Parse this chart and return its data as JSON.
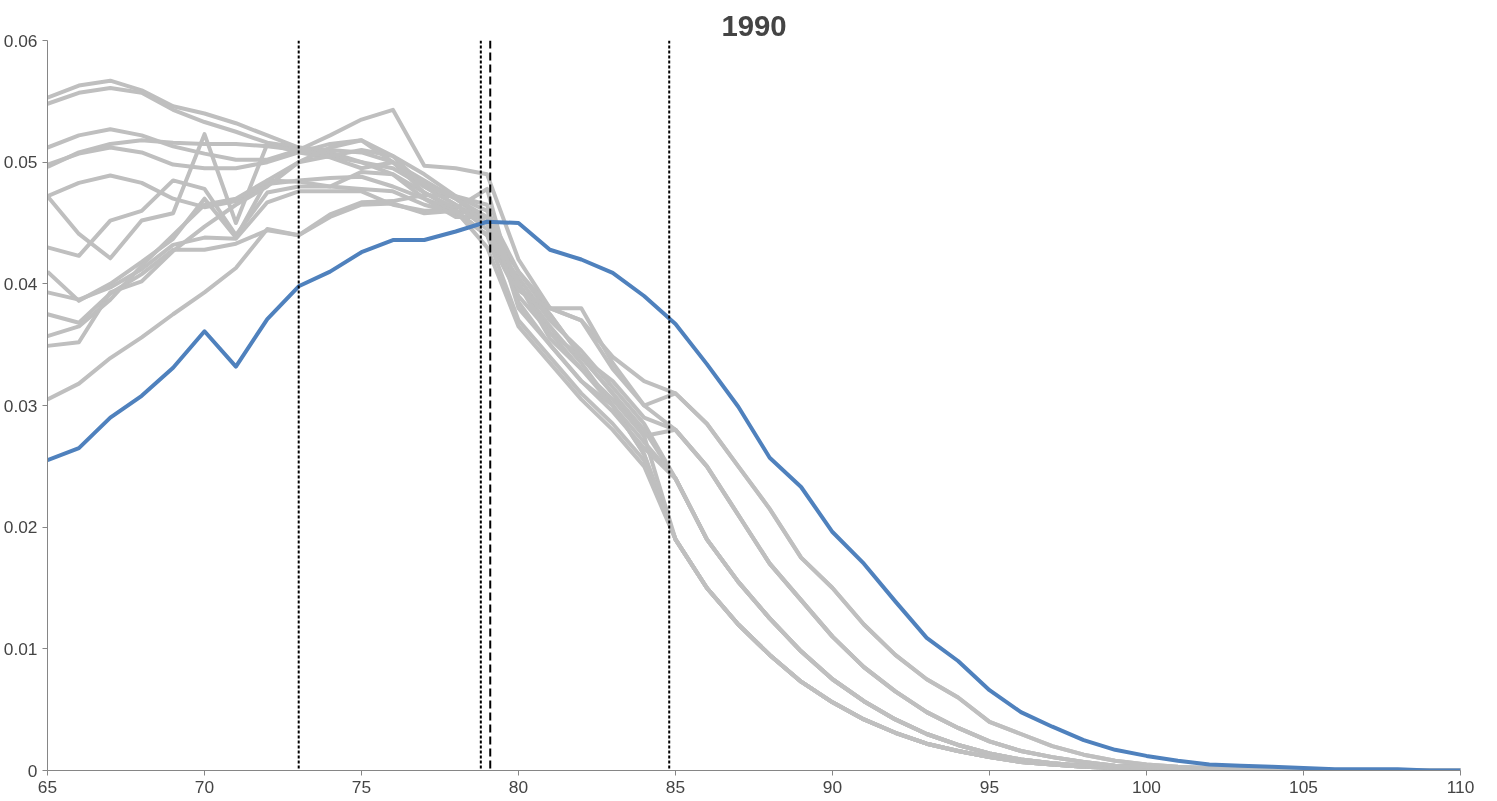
{
  "chart_data": {
    "type": "line",
    "title": "1990",
    "x": [
      65,
      66,
      67,
      68,
      69,
      70,
      71,
      72,
      73,
      74,
      75,
      76,
      77,
      78,
      79,
      80,
      81,
      82,
      83,
      84,
      85,
      86,
      87,
      88,
      89,
      90,
      91,
      92,
      93,
      94,
      95,
      96,
      97,
      98,
      99,
      100,
      101,
      102,
      103,
      104,
      105,
      106,
      107,
      108,
      109,
      110
    ],
    "xlim": [
      65,
      110
    ],
    "xticks": [
      65,
      70,
      75,
      80,
      85,
      90,
      95,
      100,
      105,
      110
    ],
    "ylim": [
      0,
      0.06
    ],
    "yticks": [
      0,
      0.01,
      0.02,
      0.03,
      0.04,
      0.05,
      0.06
    ],
    "grid": false,
    "marker": "none",
    "line_style": "solid",
    "ref_lines": [
      {
        "axis": "x",
        "value": 73,
        "color": "#000000",
        "line_style": "dotted"
      },
      {
        "axis": "x",
        "value": 78.8,
        "color": "#000000",
        "line_style": "dotted"
      },
      {
        "axis": "x",
        "value": 79.1,
        "color": "#000000",
        "line_style": "dashed"
      },
      {
        "axis": "x",
        "value": 84.8,
        "color": "#000000",
        "line_style": "dotted"
      }
    ],
    "series": [
      {
        "color": "#bfbfbf",
        "values": [
          0.0553,
          0.0563,
          0.0567,
          0.0559,
          0.0546,
          0.054,
          0.0532,
          0.0522,
          0.0512,
          0.0508,
          0.05,
          0.049,
          0.0475,
          0.046,
          0.044,
          0.0405,
          0.037,
          0.0345,
          0.0315,
          0.0285,
          0.024,
          0.019,
          0.0155,
          0.0125,
          0.0098,
          0.0075,
          0.0057,
          0.0042,
          0.003,
          0.0021,
          0.0014,
          0.0009,
          0.0006,
          0.0004,
          0.0002,
          0.0002,
          0.0001,
          0.0001,
          0,
          0,
          0,
          0,
          0,
          0,
          0,
          0
        ]
      },
      {
        "color": "#bfbfbf",
        "values": [
          0.0548,
          0.0557,
          0.0561,
          0.0557,
          0.0543,
          0.0533,
          0.0525,
          0.0516,
          0.0512,
          0.051,
          0.0508,
          0.05,
          0.0485,
          0.047,
          0.045,
          0.041,
          0.0375,
          0.034,
          0.031,
          0.0275,
          0.019,
          0.015,
          0.012,
          0.0095,
          0.0073,
          0.0056,
          0.0042,
          0.0031,
          0.0022,
          0.0016,
          0.0011,
          0.0007,
          0.0005,
          0.0003,
          0.0002,
          0.0001,
          0.0001,
          0,
          0,
          0,
          0,
          0,
          0,
          0,
          0,
          0
        ]
      },
      {
        "color": "#bfbfbf",
        "values": [
          0.0512,
          0.0522,
          0.0527,
          0.0522,
          0.0513,
          0.0507,
          0.0502,
          0.0502,
          0.051,
          0.0522,
          0.0535,
          0.0543,
          0.0497,
          0.0495,
          0.049,
          0.042,
          0.038,
          0.037,
          0.034,
          0.032,
          0.031,
          0.0285,
          0.025,
          0.0215,
          0.0175,
          0.015,
          0.012,
          0.0095,
          0.0075,
          0.006,
          0.004,
          0.003,
          0.002,
          0.0013,
          0.0008,
          0.0005,
          0.0003,
          0.0002,
          0.0001,
          0.0001,
          0,
          0,
          0,
          0,
          0,
          0
        ]
      },
      {
        "color": "#bfbfbf",
        "values": [
          0.0496,
          0.0508,
          0.0515,
          0.0518,
          0.0516,
          0.0515,
          0.0515,
          0.0513,
          0.051,
          0.0505,
          0.05,
          0.0495,
          0.048,
          0.0465,
          0.045,
          0.04,
          0.0365,
          0.0335,
          0.03,
          0.026,
          0.019,
          0.015,
          0.012,
          0.0095,
          0.0073,
          0.0056,
          0.0042,
          0.0031,
          0.0022,
          0.0016,
          0.0011,
          0.0007,
          0.0005,
          0.0003,
          0.0002,
          0.0001,
          0.0001,
          0,
          0,
          0,
          0,
          0,
          0,
          0,
          0,
          0
        ]
      },
      {
        "color": "#bfbfbf",
        "values": [
          0.0498,
          0.0507,
          0.0512,
          0.0508,
          0.0498,
          0.0495,
          0.0495,
          0.05,
          0.0508,
          0.0515,
          0.0518,
          0.0505,
          0.049,
          0.0472,
          0.046,
          0.041,
          0.038,
          0.038,
          0.0335,
          0.03,
          0.028,
          0.025,
          0.021,
          0.017,
          0.014,
          0.011,
          0.0085,
          0.0065,
          0.0048,
          0.0035,
          0.0024,
          0.0016,
          0.0011,
          0.0007,
          0.0004,
          0.0003,
          0.0002,
          0.0001,
          0.0001,
          0,
          0,
          0,
          0,
          0,
          0,
          0
        ]
      },
      {
        "color": "#bfbfbf",
        "values": [
          0.0472,
          0.0483,
          0.0489,
          0.0483,
          0.047,
          0.0463,
          0.0468,
          0.0482,
          0.0485,
          0.0487,
          0.0488,
          0.048,
          0.047,
          0.046,
          0.0455,
          0.04,
          0.036,
          0.034,
          0.031,
          0.028,
          0.024,
          0.019,
          0.0155,
          0.0125,
          0.0098,
          0.0075,
          0.0057,
          0.0042,
          0.003,
          0.0021,
          0.0014,
          0.0009,
          0.0006,
          0.0004,
          0.0002,
          0.0002,
          0.0001,
          0.0001,
          0,
          0,
          0,
          0,
          0,
          0,
          0,
          0
        ]
      },
      {
        "color": "#bfbfbf",
        "values": [
          0.0472,
          0.0441,
          0.0421,
          0.0452,
          0.0458,
          0.0523,
          0.045,
          0.0515,
          0.0508,
          0.0504,
          0.0495,
          0.05,
          0.0475,
          0.0462,
          0.0478,
          0.0385,
          0.035,
          0.032,
          0.03,
          0.026,
          0.019,
          0.015,
          0.012,
          0.0095,
          0.0073,
          0.0056,
          0.0042,
          0.0031,
          0.0022,
          0.0016,
          0.0011,
          0.0007,
          0.0005,
          0.0003,
          0.0002,
          0.0001,
          0.0001,
          0,
          0,
          0,
          0,
          0,
          0,
          0,
          0,
          0
        ]
      },
      {
        "color": "#bfbfbf",
        "values": [
          0.043,
          0.0423,
          0.0452,
          0.046,
          0.0485,
          0.0478,
          0.044,
          0.0475,
          0.048,
          0.048,
          0.0492,
          0.049,
          0.047,
          0.0455,
          0.0455,
          0.0395,
          0.0375,
          0.034,
          0.032,
          0.029,
          0.028,
          0.025,
          0.021,
          0.017,
          0.014,
          0.011,
          0.0085,
          0.0065,
          0.0048,
          0.0035,
          0.0024,
          0.0016,
          0.0011,
          0.0007,
          0.0004,
          0.0003,
          0.0002,
          0.0001,
          0.0001,
          0,
          0,
          0,
          0,
          0,
          0,
          0
        ]
      },
      {
        "color": "#bfbfbf",
        "values": [
          0.041,
          0.0386,
          0.04,
          0.0418,
          0.0437,
          0.047,
          0.0438,
          0.0485,
          0.0484,
          0.048,
          0.0478,
          0.0476,
          0.0465,
          0.0458,
          0.044,
          0.039,
          0.036,
          0.033,
          0.03,
          0.027,
          0.024,
          0.019,
          0.0155,
          0.0125,
          0.0098,
          0.0075,
          0.0057,
          0.0042,
          0.003,
          0.0021,
          0.0014,
          0.0009,
          0.0006,
          0.0004,
          0.0002,
          0.0002,
          0.0001,
          0.0001,
          0,
          0,
          0,
          0,
          0,
          0,
          0,
          0
        ]
      },
      {
        "color": "#bfbfbf",
        "values": [
          0.0393,
          0.0387,
          0.0397,
          0.0412,
          0.0432,
          0.0438,
          0.0437,
          0.0467,
          0.0476,
          0.0476,
          0.0476,
          0.0465,
          0.046,
          0.046,
          0.044,
          0.037,
          0.034,
          0.031,
          0.0285,
          0.0255,
          0.019,
          0.015,
          0.012,
          0.0095,
          0.0073,
          0.0056,
          0.0042,
          0.0031,
          0.0022,
          0.0016,
          0.0011,
          0.0007,
          0.0005,
          0.0003,
          0.0002,
          0.0001,
          0.0001,
          0,
          0,
          0,
          0,
          0,
          0,
          0,
          0,
          0
        ]
      },
      {
        "color": "#bfbfbf",
        "values": [
          0.0375,
          0.0368,
          0.0392,
          0.0408,
          0.0428,
          0.0428,
          0.0433,
          0.0444,
          0.044,
          0.0455,
          0.0465,
          0.0466,
          0.0458,
          0.046,
          0.043,
          0.0365,
          0.0335,
          0.0305,
          0.028,
          0.025,
          0.019,
          0.015,
          0.012,
          0.0095,
          0.0073,
          0.0056,
          0.0042,
          0.0031,
          0.0022,
          0.0016,
          0.0011,
          0.0007,
          0.0005,
          0.0003,
          0.0002,
          0.0001,
          0.0001,
          0,
          0,
          0,
          0,
          0,
          0,
          0,
          0,
          0
        ]
      },
      {
        "color": "#bfbfbf",
        "values": [
          0.0349,
          0.0352,
          0.0393,
          0.0402,
          0.0427,
          0.0447,
          0.0465,
          0.048,
          0.05,
          0.0505,
          0.051,
          0.0505,
          0.048,
          0.0465,
          0.0445,
          0.0395,
          0.038,
          0.037,
          0.033,
          0.03,
          0.031,
          0.0285,
          0.025,
          0.0215,
          0.0175,
          0.015,
          0.012,
          0.0095,
          0.0075,
          0.006,
          0.004,
          0.003,
          0.002,
          0.0013,
          0.0008,
          0.0005,
          0.0003,
          0.0002,
          0.0001,
          0.0001,
          0,
          0,
          0,
          0,
          0,
          0
        ]
      },
      {
        "color": "#bfbfbf",
        "values": [
          0.0305,
          0.0318,
          0.0339,
          0.0356,
          0.0375,
          0.0393,
          0.0413,
          0.0445,
          0.044,
          0.0457,
          0.0467,
          0.0468,
          0.0473,
          0.0472,
          0.0465,
          0.038,
          0.035,
          0.032,
          0.0295,
          0.0265,
          0.024,
          0.019,
          0.0155,
          0.0125,
          0.0098,
          0.0075,
          0.0057,
          0.0042,
          0.003,
          0.0021,
          0.0014,
          0.0009,
          0.0006,
          0.0004,
          0.0002,
          0.0002,
          0.0001,
          0.0001,
          0,
          0,
          0,
          0,
          0,
          0,
          0,
          0
        ]
      },
      {
        "color": "#bfbfbf",
        "values": [
          0.0357,
          0.0365,
          0.0387,
          0.0415,
          0.044,
          0.0465,
          0.047,
          0.0485,
          0.05,
          0.0512,
          0.0518,
          0.05,
          0.0482,
          0.047,
          0.0455,
          0.04,
          0.0355,
          0.033,
          0.0305,
          0.0275,
          0.028,
          0.025,
          0.021,
          0.017,
          0.014,
          0.011,
          0.0085,
          0.0065,
          0.0048,
          0.0035,
          0.0024,
          0.0016,
          0.0011,
          0.0007,
          0.0004,
          0.0003,
          0.0002,
          0.0001,
          0.0001,
          0,
          0,
          0,
          0,
          0,
          0,
          0
        ]
      },
      {
        "color": "#4f81bd",
        "values": [
          0.0255,
          0.0265,
          0.029,
          0.0308,
          0.0331,
          0.0361,
          0.0332,
          0.0371,
          0.0398,
          0.041,
          0.0426,
          0.0436,
          0.0436,
          0.0443,
          0.0451,
          0.045,
          0.0428,
          0.042,
          0.0409,
          0.039,
          0.0367,
          0.0334,
          0.0299,
          0.0257,
          0.0233,
          0.0196,
          0.017,
          0.0139,
          0.0109,
          0.009,
          0.0066,
          0.0048,
          0.0036,
          0.0025,
          0.0017,
          0.0012,
          0.0008,
          0.0005,
          0.0004,
          0.0003,
          0.0002,
          0.0001,
          0.0001,
          0.0001,
          0,
          0
        ]
      }
    ]
  }
}
